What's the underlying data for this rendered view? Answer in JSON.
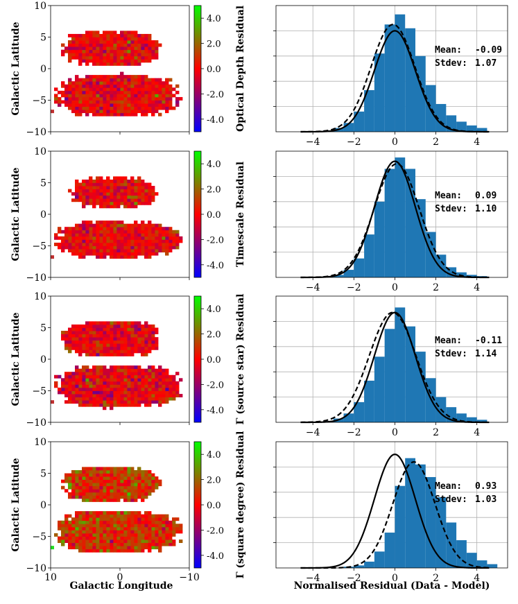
{
  "chart_data": [
    {
      "type": "heatmap",
      "ylabel": "Galactic Latitude",
      "colorbar_label": "Optical Depth Residual",
      "x_ticks": [
        "10",
        "0",
        "−10"
      ],
      "y_ticks": [
        "10",
        "5",
        "0",
        "−5",
        "−10"
      ],
      "colorbar_ticks": [
        "4.0",
        "2.0",
        "0.0",
        "-2.0",
        "-4.0"
      ],
      "xlim": [
        10,
        -10
      ],
      "ylim": [
        -10,
        10
      ],
      "clim": [
        -5,
        5
      ],
      "regions": [
        {
          "l": [
            -5.5,
            8.0
          ],
          "b": [
            0.5,
            6.0
          ]
        },
        {
          "l": [
            -8.5,
            9.0
          ],
          "b": [
            -7.5,
            -1.0
          ]
        }
      ],
      "bias": 0.0,
      "spread": 0.9,
      "seed": 11
    },
    {
      "type": "heatmap",
      "ylabel": "Galactic Latitude",
      "colorbar_label": "Timescale Residual",
      "x_ticks": [
        "10",
        "0",
        "−10"
      ],
      "y_ticks": [
        "10",
        "5",
        "0",
        "−5",
        "−10"
      ],
      "colorbar_ticks": [
        "4.0",
        "2.0",
        "0.0",
        "-2.0",
        "-4.0"
      ],
      "xlim": [
        10,
        -10
      ],
      "ylim": [
        -10,
        10
      ],
      "clim": [
        -5,
        5
      ],
      "regions": [
        {
          "l": [
            -5.0,
            7.0
          ],
          "b": [
            1.0,
            5.8
          ]
        },
        {
          "l": [
            -8.5,
            9.0
          ],
          "b": [
            -6.8,
            -1.2
          ]
        }
      ],
      "bias": 0.0,
      "spread": 0.9,
      "seed": 23
    },
    {
      "type": "heatmap",
      "ylabel": "Galactic Latitude",
      "colorbar_label": "Γ (source star) Residual",
      "x_ticks": [
        "10",
        "0",
        "−10"
      ],
      "y_ticks": [
        "10",
        "5",
        "0",
        "−5",
        "−10"
      ],
      "colorbar_ticks": [
        "4.0",
        "2.0",
        "0.0",
        "-2.0",
        "-4.0"
      ],
      "xlim": [
        10,
        -10
      ],
      "ylim": [
        -10,
        10
      ],
      "clim": [
        -5,
        5
      ],
      "regions": [
        {
          "l": [
            -5.5,
            8.0
          ],
          "b": [
            0.5,
            6.0
          ]
        },
        {
          "l": [
            -8.5,
            9.0
          ],
          "b": [
            -7.5,
            -1.0
          ]
        }
      ],
      "bias": -0.1,
      "spread": 1.0,
      "seed": 37
    },
    {
      "type": "heatmap",
      "ylabel": "Galactic Latitude",
      "xlabel": "Galactic Longitude",
      "colorbar_label": "Γ (square degree) Residual",
      "x_ticks": [
        "10",
        "0",
        "−10"
      ],
      "y_ticks": [
        "10",
        "5",
        "0",
        "−5",
        "−10"
      ],
      "colorbar_ticks": [
        "4.0",
        "2.0",
        "0.0",
        "-2.0",
        "-4.0"
      ],
      "xlim": [
        10,
        -10
      ],
      "ylim": [
        -10,
        10
      ],
      "clim": [
        -5,
        5
      ],
      "regions": [
        {
          "l": [
            -5.5,
            8.0
          ],
          "b": [
            0.5,
            6.0
          ]
        },
        {
          "l": [
            -8.5,
            9.0
          ],
          "b": [
            -7.5,
            -1.0
          ]
        }
      ],
      "bias": 0.9,
      "spread": 1.0,
      "seed": 53
    },
    {
      "type": "bar",
      "x_ticks": [
        "−4",
        "−2",
        "0",
        "2",
        "4"
      ],
      "xlim": [
        -5.8,
        5.5
      ],
      "bin_edges": [
        -5.0,
        -4.5,
        -4.0,
        -3.5,
        -3.0,
        -2.5,
        -2.0,
        -1.5,
        -1.0,
        -0.5,
        0.0,
        0.5,
        1.0,
        1.5,
        2.0,
        2.5,
        3.0,
        3.5,
        4.0,
        4.5,
        5.0
      ],
      "values": [
        0.0,
        0.0,
        0.005,
        0.01,
        0.03,
        0.07,
        0.16,
        0.33,
        0.62,
        0.85,
        0.93,
        0.82,
        0.6,
        0.37,
        0.22,
        0.13,
        0.08,
        0.05,
        0.03,
        0.0
      ],
      "ylim": [
        0,
        1.0
      ],
      "mean_label": "Mean:",
      "mean": "-0.09",
      "stdev_label": "Stdev:",
      "stdev": "1.07",
      "gauss_fit": {
        "mu": -0.09,
        "sigma": 1.07,
        "peak": 0.85
      },
      "gauss_ref": {
        "mu": 0.0,
        "sigma": 1.0,
        "peak": 0.8
      }
    },
    {
      "type": "bar",
      "x_ticks": [
        "−4",
        "−2",
        "0",
        "2",
        "4"
      ],
      "xlim": [
        -5.8,
        5.5
      ],
      "bin_edges": [
        -5.0,
        -4.5,
        -4.0,
        -3.5,
        -3.0,
        -2.5,
        -2.0,
        -1.5,
        -1.0,
        -0.5,
        0.0,
        0.5,
        1.0,
        1.5,
        2.0,
        2.5,
        3.0,
        3.5,
        4.0,
        4.5,
        5.0
      ],
      "values": [
        0.0,
        0.0,
        0.0,
        0.01,
        0.02,
        0.06,
        0.15,
        0.34,
        0.6,
        0.86,
        0.95,
        0.86,
        0.62,
        0.36,
        0.18,
        0.08,
        0.04,
        0.02,
        0.01,
        0.0
      ],
      "ylim": [
        0,
        1.0
      ],
      "mean_label": "Mean:",
      "mean": "0.09",
      "stdev_label": "Stdev:",
      "stdev": "1.10",
      "gauss_fit": {
        "mu": 0.09,
        "sigma": 1.1,
        "peak": 0.9
      },
      "gauss_ref": {
        "mu": 0.0,
        "sigma": 1.0,
        "peak": 0.92
      }
    },
    {
      "type": "bar",
      "x_ticks": [
        "−4",
        "−2",
        "0",
        "2",
        "4"
      ],
      "xlim": [
        -5.8,
        5.5
      ],
      "bin_edges": [
        -5.0,
        -4.5,
        -4.0,
        -3.5,
        -3.0,
        -2.5,
        -2.0,
        -1.5,
        -1.0,
        -0.5,
        0.0,
        0.5,
        1.0,
        1.5,
        2.0,
        2.5,
        3.0,
        3.5,
        4.0,
        4.5,
        5.0
      ],
      "values": [
        0.0,
        0.0,
        0.0,
        0.01,
        0.03,
        0.07,
        0.16,
        0.33,
        0.52,
        0.74,
        0.91,
        0.76,
        0.56,
        0.35,
        0.2,
        0.12,
        0.07,
        0.04,
        0.02,
        0.0
      ],
      "ylim": [
        0,
        1.0
      ],
      "mean_label": "Mean:",
      "mean": "-0.11",
      "stdev_label": "Stdev:",
      "stdev": "1.14",
      "gauss_fit": {
        "mu": -0.11,
        "sigma": 1.14,
        "peak": 0.87
      },
      "gauss_ref": {
        "mu": 0.0,
        "sigma": 1.0,
        "peak": 0.87
      }
    },
    {
      "type": "bar",
      "xlabel": "Normalised Residual (Data - Model)",
      "x_ticks": [
        "−4",
        "−2",
        "0",
        "2",
        "4"
      ],
      "xlim": [
        -5.8,
        5.5
      ],
      "bin_edges": [
        -5.0,
        -4.5,
        -4.0,
        -3.5,
        -3.0,
        -2.5,
        -2.0,
        -1.5,
        -1.0,
        -0.5,
        0.0,
        0.5,
        1.0,
        1.5,
        2.0,
        2.5,
        3.0,
        3.5,
        4.0,
        4.5,
        5.0
      ],
      "values": [
        0.0,
        0.0,
        0.0,
        0.0,
        0.0,
        0.01,
        0.02,
        0.05,
        0.13,
        0.28,
        0.65,
        0.87,
        0.82,
        0.72,
        0.56,
        0.36,
        0.22,
        0.12,
        0.06,
        0.03
      ],
      "ylim": [
        0,
        1.0
      ],
      "mean_label": "Mean:",
      "mean": "0.93",
      "stdev_label": "Stdev:",
      "stdev": "1.03",
      "gauss_fit": {
        "mu": 0.93,
        "sigma": 1.03,
        "peak": 0.84
      },
      "gauss_ref": {
        "mu": 0.0,
        "sigma": 1.0,
        "peak": 0.9
      }
    }
  ],
  "colors": {
    "bar": "#1f77b4",
    "grid": "#b0b0b0",
    "colormap": [
      "#0000ff",
      "#ff0000",
      "#00ff00"
    ]
  }
}
